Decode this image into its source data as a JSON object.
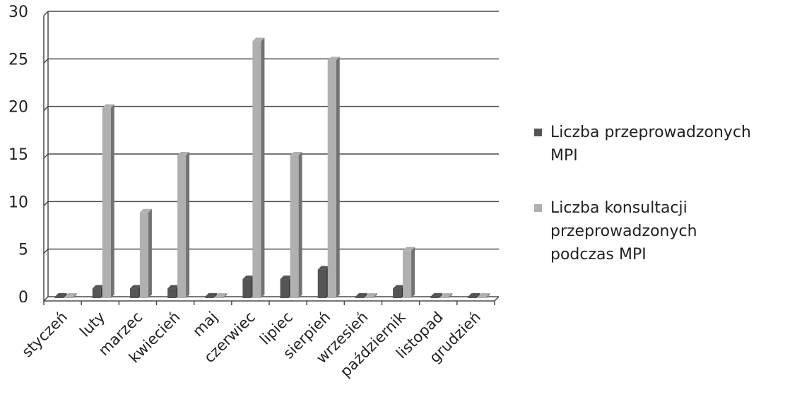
{
  "chart_data": {
    "type": "bar",
    "categories": [
      "styczeń",
      "luty",
      "marzec",
      "kwiecień",
      "maj",
      "czerwiec",
      "lipiec",
      "sierpień",
      "wrzesień",
      "październik",
      "listopad",
      "grudzień"
    ],
    "series": [
      {
        "name": "Liczba przeprowadzonych MPI",
        "values": [
          0,
          1,
          1,
          1,
          0,
          2,
          2,
          3,
          0,
          1,
          0,
          0
        ],
        "color": "#555555"
      },
      {
        "name": "Liczba konsultacji przeprowadzonych podczas MPI",
        "values": [
          0,
          20,
          9,
          15,
          0,
          27,
          15,
          25,
          0,
          5,
          0,
          0
        ],
        "color": "#b0b0b0"
      }
    ],
    "yticks": [
      "0",
      "5",
      "10",
      "15",
      "20",
      "25",
      "30"
    ],
    "ylim": [
      0,
      30
    ],
    "grid": true,
    "legend_position": "right",
    "legend": {
      "items": [
        {
          "lines": [
            "Liczba przeprowadzonych",
            "MPI"
          ]
        },
        {
          "lines": [
            "Liczba konsultacji",
            "przeprowadzonych",
            "podczas MPI"
          ]
        }
      ]
    }
  }
}
